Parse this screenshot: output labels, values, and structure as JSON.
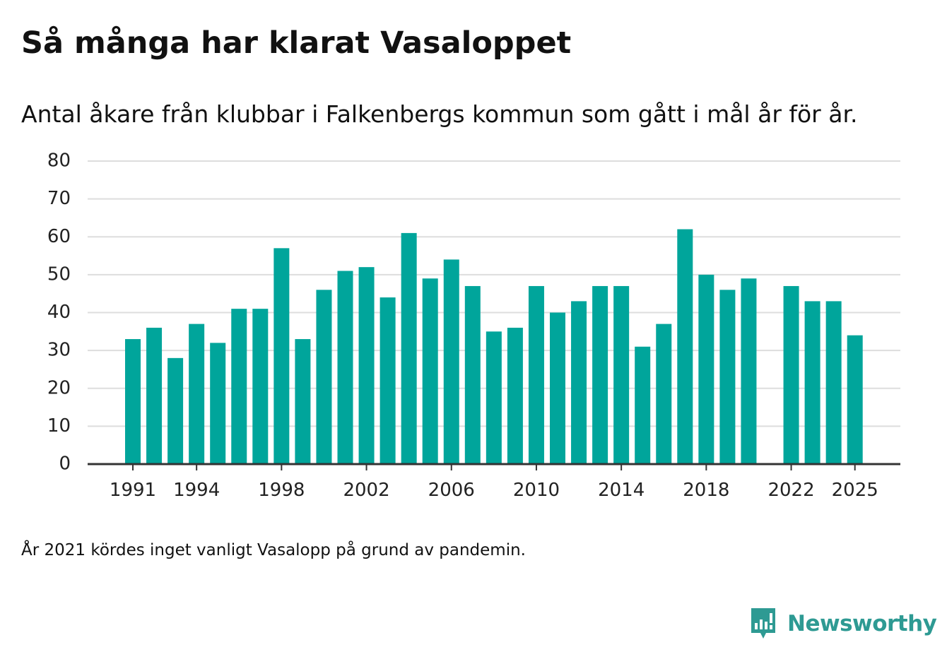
{
  "header": {
    "title": "Så många har klarat Vasaloppet",
    "subtitle": "Antal åkare från klubbar i Falkenbergs kommun som gått i mål år för år."
  },
  "footer": {
    "note": "År 2021 kördes inget vanligt Vasalopp på grund av pandemin.",
    "brand": "Newsworthy",
    "brand_icon": "newsworthy-logo-icon"
  },
  "colors": {
    "bar": "#00a59b",
    "grid": "#dddddd",
    "axis": "#333333",
    "brand": "#2e9a93"
  },
  "chart_data": {
    "type": "bar",
    "title": "Så många har klarat Vasaloppet",
    "xlabel": "",
    "ylabel": "",
    "ylim": [
      0,
      80
    ],
    "yticks": [
      0,
      10,
      20,
      30,
      40,
      50,
      60,
      70,
      80
    ],
    "xtick_labels": [
      "1991",
      "1994",
      "1998",
      "2002",
      "2006",
      "2010",
      "2014",
      "2018",
      "2022",
      "2025"
    ],
    "categories": [
      1991,
      1992,
      1993,
      1994,
      1995,
      1996,
      1997,
      1998,
      1999,
      2000,
      2001,
      2002,
      2003,
      2004,
      2005,
      2006,
      2007,
      2008,
      2009,
      2010,
      2011,
      2012,
      2013,
      2014,
      2015,
      2016,
      2017,
      2018,
      2019,
      2020,
      2021,
      2022,
      2023,
      2024,
      2025
    ],
    "values": [
      33,
      36,
      28,
      37,
      32,
      41,
      41,
      57,
      33,
      46,
      51,
      52,
      44,
      61,
      49,
      54,
      47,
      35,
      36,
      47,
      40,
      43,
      47,
      47,
      31,
      37,
      62,
      50,
      46,
      49,
      null,
      47,
      43,
      43,
      34
    ],
    "grid": true
  }
}
